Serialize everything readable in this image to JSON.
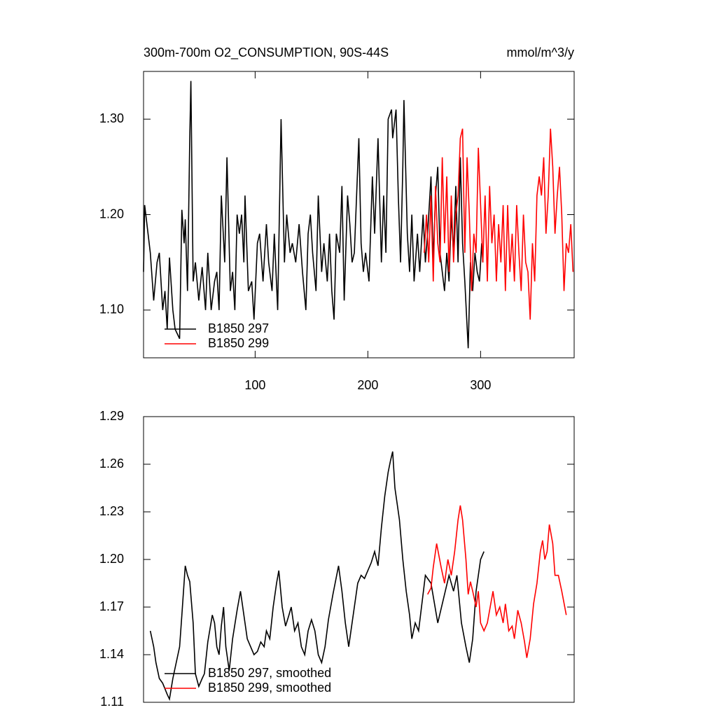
{
  "chart_data": [
    {
      "type": "line",
      "title": "300m-700m O2_CONSUMPTION, 90S-44S",
      "units": "mmol/m^3/y",
      "xlim": [
        1,
        383
      ],
      "xticks": [
        100,
        200,
        300
      ],
      "ylim": [
        1.05,
        1.35
      ],
      "yticks": [
        {
          "value": 1.1,
          "label": "1.10"
        },
        {
          "value": 1.2,
          "label": "1.20"
        },
        {
          "value": 1.3,
          "label": "1.30"
        }
      ],
      "legend": "lower left",
      "series": [
        {
          "name": "B1850 297",
          "color": "#000000",
          "x": [
            1,
            2,
            4,
            7,
            10,
            13,
            15,
            18,
            20,
            22,
            24,
            27,
            29,
            33,
            35,
            37,
            38,
            40,
            42,
            43,
            45,
            47,
            50,
            53,
            56,
            58,
            61,
            64,
            66,
            68,
            70,
            73,
            75,
            78,
            80,
            82,
            84,
            86,
            88,
            90,
            91,
            94,
            97,
            99,
            102,
            104,
            107,
            110,
            112,
            115,
            117,
            120,
            123,
            126,
            128,
            131,
            133,
            136,
            139,
            142,
            145,
            147,
            149,
            151,
            154,
            156,
            159,
            161,
            164,
            166,
            168,
            170,
            172,
            175,
            177,
            179,
            182,
            184,
            186,
            188,
            192,
            194,
            196,
            198,
            201,
            204,
            206,
            209,
            212,
            214,
            216,
            218,
            221,
            222,
            225,
            227,
            229,
            231,
            232,
            235,
            237,
            239,
            241,
            244,
            246,
            249,
            251,
            253,
            256,
            258,
            260,
            262,
            264,
            266,
            268,
            270,
            272,
            274,
            276,
            278,
            280,
            282,
            284,
            286,
            289,
            291,
            293,
            295,
            297,
            299,
            301,
            302
          ],
          "values": [
            1.14,
            1.21,
            1.19,
            1.16,
            1.11,
            1.15,
            1.16,
            1.1,
            1.12,
            1.08,
            1.155,
            1.1,
            1.08,
            1.07,
            1.205,
            1.17,
            1.195,
            1.12,
            1.28,
            1.34,
            1.13,
            1.15,
            1.11,
            1.145,
            1.1,
            1.16,
            1.1,
            1.13,
            1.14,
            1.1,
            1.22,
            1.15,
            1.26,
            1.12,
            1.14,
            1.1,
            1.2,
            1.18,
            1.2,
            1.15,
            1.22,
            1.12,
            1.13,
            1.09,
            1.17,
            1.18,
            1.13,
            1.19,
            1.15,
            1.12,
            1.18,
            1.1,
            1.3,
            1.15,
            1.2,
            1.16,
            1.17,
            1.15,
            1.19,
            1.14,
            1.1,
            1.18,
            1.2,
            1.16,
            1.12,
            1.22,
            1.14,
            1.17,
            1.13,
            1.18,
            1.12,
            1.09,
            1.18,
            1.16,
            1.23,
            1.11,
            1.22,
            1.19,
            1.15,
            1.16,
            1.28,
            1.17,
            1.14,
            1.16,
            1.13,
            1.24,
            1.18,
            1.28,
            1.15,
            1.22,
            1.16,
            1.3,
            1.31,
            1.28,
            1.31,
            1.22,
            1.15,
            1.25,
            1.32,
            1.18,
            1.14,
            1.2,
            1.13,
            1.18,
            1.14,
            1.2,
            1.15,
            1.18,
            1.24,
            1.15,
            1.22,
            1.25,
            1.16,
            1.14,
            1.12,
            1.16,
            1.13,
            1.2,
            1.16,
            1.23,
            1.15,
            1.26,
            1.17,
            1.13,
            1.06,
            1.15,
            1.12,
            1.16,
            1.14,
            1.13,
            1.17,
            1.15
          ]
        },
        {
          "name": "B1850 299",
          "color": "#ff0000",
          "x": [
            250,
            252,
            254,
            256,
            258,
            260,
            262,
            264,
            266,
            268,
            270,
            272,
            274,
            276,
            278,
            280,
            282,
            284,
            286,
            288,
            290,
            292,
            294,
            296,
            298,
            300,
            302,
            304,
            306,
            308,
            310,
            312,
            314,
            316,
            318,
            320,
            322,
            324,
            326,
            328,
            330,
            332,
            334,
            336,
            338,
            340,
            342,
            344,
            346,
            348,
            350,
            352,
            354,
            356,
            358,
            360,
            362,
            364,
            366,
            368,
            370,
            372,
            374,
            376,
            378,
            380,
            382
          ],
          "values": [
            1.16,
            1.2,
            1.15,
            1.22,
            1.13,
            1.23,
            1.17,
            1.15,
            1.26,
            1.17,
            1.24,
            1.14,
            1.22,
            1.15,
            1.2,
            1.22,
            1.28,
            1.29,
            1.16,
            1.26,
            1.2,
            1.12,
            1.18,
            1.16,
            1.27,
            1.21,
            1.15,
            1.22,
            1.13,
            1.23,
            1.17,
            1.2,
            1.13,
            1.19,
            1.15,
            1.21,
            1.12,
            1.21,
            1.14,
            1.18,
            1.13,
            1.21,
            1.16,
            1.12,
            1.2,
            1.15,
            1.14,
            1.09,
            1.17,
            1.13,
            1.22,
            1.24,
            1.22,
            1.26,
            1.18,
            1.22,
            1.29,
            1.25,
            1.18,
            1.22,
            1.25,
            1.2,
            1.12,
            1.17,
            1.16,
            1.19,
            1.14
          ]
        }
      ]
    },
    {
      "type": "line",
      "xlim": [
        1,
        383
      ],
      "ylim": [
        1.11,
        1.29
      ],
      "yticks": [
        1.11,
        1.14,
        1.17,
        {
          "value": 1.2,
          "label": "1.20"
        },
        1.23,
        1.26,
        1.29
      ],
      "legend": "lower left",
      "series": [
        {
          "name": "B1850 297, smoothed",
          "color": "#000000",
          "x": [
            7,
            10,
            12,
            15,
            18,
            22,
            24,
            27,
            30,
            33,
            35,
            38,
            40,
            42,
            45,
            47,
            50,
            53,
            55,
            58,
            62,
            64,
            66,
            68,
            70,
            72,
            74,
            77,
            80,
            84,
            87,
            90,
            93,
            96,
            99,
            102,
            105,
            108,
            110,
            113,
            116,
            119,
            121,
            124,
            127,
            130,
            132,
            135,
            138,
            141,
            144,
            147,
            150,
            153,
            156,
            159,
            162,
            165,
            169,
            174,
            177,
            180,
            183,
            186,
            188,
            191,
            194,
            197,
            200,
            203,
            206,
            209,
            212,
            215,
            218,
            220,
            222,
            224,
            226,
            228,
            231,
            234,
            237,
            239,
            242,
            245,
            251,
            256,
            262,
            267,
            272,
            276,
            279,
            283,
            287,
            290,
            293,
            296,
            300,
            303
          ],
          "values": [
            1.155,
            1.145,
            1.135,
            1.125,
            1.122,
            1.115,
            1.112,
            1.125,
            1.135,
            1.145,
            1.165,
            1.196,
            1.19,
            1.186,
            1.16,
            1.128,
            1.12,
            1.125,
            1.128,
            1.148,
            1.165,
            1.16,
            1.145,
            1.14,
            1.158,
            1.17,
            1.145,
            1.13,
            1.15,
            1.168,
            1.18,
            1.165,
            1.15,
            1.145,
            1.14,
            1.142,
            1.148,
            1.145,
            1.155,
            1.15,
            1.17,
            1.185,
            1.193,
            1.17,
            1.158,
            1.165,
            1.17,
            1.155,
            1.16,
            1.145,
            1.14,
            1.155,
            1.162,
            1.155,
            1.14,
            1.135,
            1.145,
            1.162,
            1.178,
            1.196,
            1.18,
            1.16,
            1.145,
            1.16,
            1.17,
            1.185,
            1.19,
            1.188,
            1.193,
            1.198,
            1.205,
            1.196,
            1.22,
            1.24,
            1.255,
            1.262,
            1.268,
            1.245,
            1.235,
            1.225,
            1.2,
            1.18,
            1.165,
            1.15,
            1.16,
            1.155,
            1.19,
            1.185,
            1.16,
            1.175,
            1.19,
            1.18,
            1.19,
            1.16,
            1.145,
            1.135,
            1.15,
            1.18,
            1.2,
            1.205
          ]
        },
        {
          "name": "B1850 299, smoothed",
          "color": "#ff0000",
          "x": [
            253,
            256,
            258,
            261,
            265,
            268,
            271,
            274,
            277,
            280,
            282,
            284,
            287,
            289,
            291,
            293,
            296,
            298,
            300,
            303,
            306,
            309,
            311,
            314,
            317,
            320,
            322,
            325,
            328,
            330,
            333,
            336,
            339,
            341,
            344,
            347,
            350,
            353,
            355,
            357,
            359,
            361,
            364,
            366,
            369,
            372,
            376
          ],
          "values": [
            1.178,
            1.182,
            1.195,
            1.21,
            1.195,
            1.185,
            1.2,
            1.19,
            1.205,
            1.225,
            1.234,
            1.225,
            1.2,
            1.178,
            1.186,
            1.18,
            1.17,
            1.18,
            1.16,
            1.155,
            1.16,
            1.172,
            1.18,
            1.165,
            1.17,
            1.16,
            1.172,
            1.155,
            1.158,
            1.15,
            1.168,
            1.16,
            1.148,
            1.138,
            1.15,
            1.172,
            1.185,
            1.205,
            1.212,
            1.2,
            1.205,
            1.222,
            1.21,
            1.19,
            1.19,
            1.18,
            1.165
          ]
        }
      ]
    }
  ]
}
